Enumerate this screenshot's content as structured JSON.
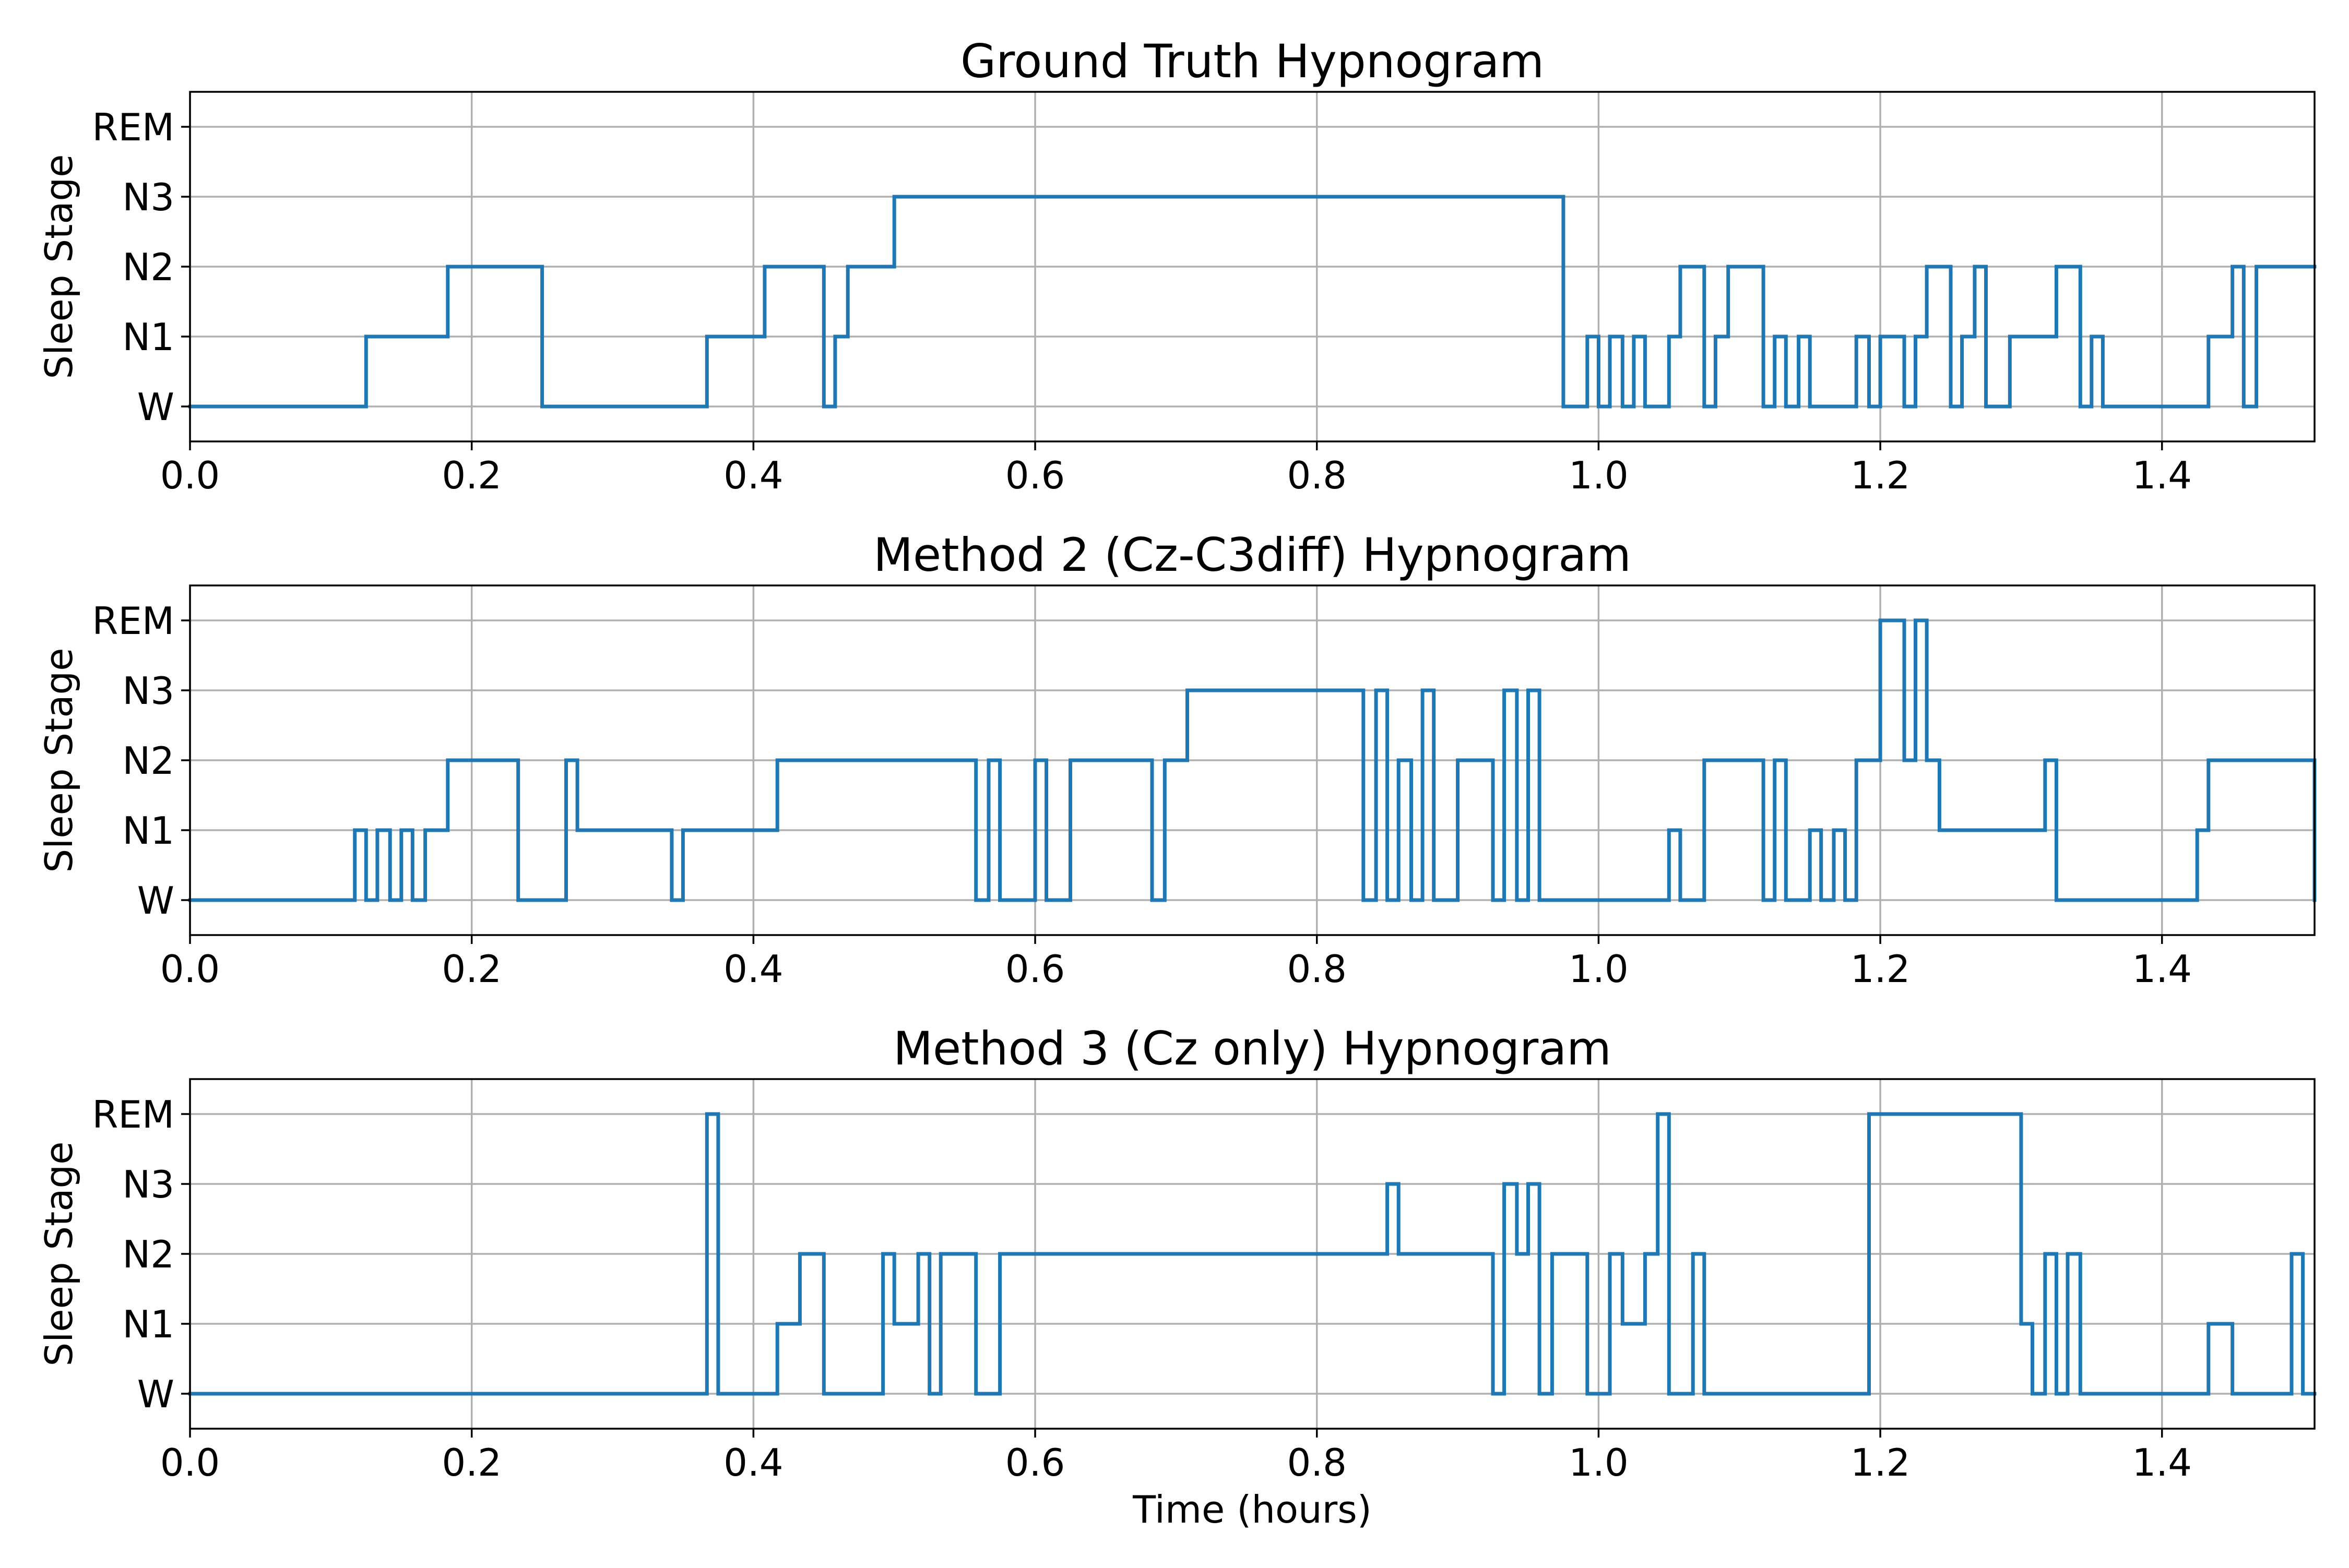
{
  "chart_data": [
    {
      "type": "line",
      "step": "post",
      "title": "Ground Truth Hypnogram",
      "ylabel": "Sleep Stage",
      "xlabel": "",
      "xlim": [
        0.0,
        1.5083
      ],
      "ylim": [
        -0.5,
        4.5
      ],
      "x_ticks": [
        "0.0",
        "0.2",
        "0.4",
        "0.6",
        "0.8",
        "1.0",
        "1.2",
        "1.4"
      ],
      "y_ticks": [
        "W",
        "N1",
        "N2",
        "N3",
        "REM"
      ],
      "grid": true,
      "color": "#1f77b4",
      "series": [
        {
          "x": [
            0.0,
            0.125,
            0.183,
            0.25,
            0.367,
            0.408,
            0.45,
            0.458,
            0.467,
            0.5,
            0.975,
            0.992,
            1.0,
            1.008,
            1.017,
            1.025,
            1.033,
            1.05,
            1.058,
            1.075,
            1.083,
            1.092,
            1.117,
            1.125,
            1.133,
            1.142,
            1.15,
            1.183,
            1.192,
            1.2,
            1.217,
            1.225,
            1.233,
            1.25,
            1.258,
            1.267,
            1.275,
            1.292,
            1.325,
            1.342,
            1.35,
            1.358,
            1.433,
            1.45,
            1.458,
            1.467,
            1.5083
          ],
          "y": [
            0,
            1,
            2,
            0,
            1,
            2,
            0,
            1,
            2,
            3,
            0,
            1,
            0,
            1,
            0,
            1,
            0,
            1,
            2,
            0,
            1,
            2,
            0,
            1,
            0,
            1,
            0,
            1,
            0,
            1,
            0,
            1,
            2,
            0,
            1,
            2,
            0,
            1,
            2,
            0,
            1,
            0,
            1,
            2,
            0,
            2,
            2
          ]
        }
      ]
    },
    {
      "type": "line",
      "step": "post",
      "title": "Method 2 (Cz-C3diff) Hypnogram",
      "ylabel": "Sleep Stage",
      "xlabel": "",
      "xlim": [
        0.0,
        1.5083
      ],
      "ylim": [
        -0.5,
        4.5
      ],
      "x_ticks": [
        "0.0",
        "0.2",
        "0.4",
        "0.6",
        "0.8",
        "1.0",
        "1.2",
        "1.4"
      ],
      "y_ticks": [
        "W",
        "N1",
        "N2",
        "N3",
        "REM"
      ],
      "grid": true,
      "color": "#1f77b4",
      "series": [
        {
          "x": [
            0.0,
            0.117,
            0.125,
            0.133,
            0.142,
            0.15,
            0.158,
            0.167,
            0.183,
            0.233,
            0.267,
            0.275,
            0.342,
            0.35,
            0.417,
            0.558,
            0.567,
            0.575,
            0.6,
            0.608,
            0.625,
            0.683,
            0.692,
            0.708,
            0.833,
            0.842,
            0.85,
            0.858,
            0.867,
            0.875,
            0.883,
            0.9,
            0.925,
            0.933,
            0.942,
            0.95,
            0.958,
            1.05,
            1.058,
            1.075,
            1.117,
            1.125,
            1.133,
            1.15,
            1.158,
            1.167,
            1.175,
            1.183,
            1.2,
            1.217,
            1.225,
            1.233,
            1.242,
            1.317,
            1.325,
            1.358,
            1.425,
            1.433,
            1.5,
            1.5083
          ],
          "y": [
            0,
            1,
            0,
            1,
            0,
            1,
            0,
            1,
            2,
            0,
            2,
            1,
            0,
            1,
            2,
            0,
            2,
            0,
            2,
            0,
            2,
            0,
            2,
            3,
            0,
            3,
            0,
            2,
            0,
            3,
            0,
            2,
            0,
            3,
            0,
            3,
            0,
            1,
            0,
            2,
            0,
            2,
            0,
            1,
            0,
            1,
            0,
            2,
            4,
            2,
            4,
            2,
            1,
            2,
            0,
            0,
            1,
            2,
            2,
            0
          ]
        }
      ]
    },
    {
      "type": "line",
      "step": "post",
      "title": "Method 3 (Cz only) Hypnogram",
      "ylabel": "Sleep Stage",
      "xlabel": "Time (hours)",
      "xlim": [
        0.0,
        1.5083
      ],
      "ylim": [
        -0.5,
        4.5
      ],
      "x_ticks": [
        "0.0",
        "0.2",
        "0.4",
        "0.6",
        "0.8",
        "1.0",
        "1.2",
        "1.4"
      ],
      "y_ticks": [
        "W",
        "N1",
        "N2",
        "N3",
        "REM"
      ],
      "grid": true,
      "color": "#1f77b4",
      "series": [
        {
          "x": [
            0.0,
            0.367,
            0.375,
            0.417,
            0.433,
            0.45,
            0.492,
            0.5,
            0.517,
            0.525,
            0.533,
            0.558,
            0.575,
            0.85,
            0.858,
            0.925,
            0.933,
            0.942,
            0.95,
            0.958,
            0.967,
            0.992,
            1.008,
            1.017,
            1.033,
            1.042,
            1.05,
            1.067,
            1.075,
            1.192,
            1.3,
            1.308,
            1.317,
            1.325,
            1.333,
            1.342,
            1.35,
            1.433,
            1.45,
            1.492,
            1.5,
            1.5083
          ],
          "y": [
            0,
            4,
            0,
            1,
            2,
            0,
            2,
            1,
            2,
            0,
            2,
            0,
            2,
            3,
            2,
            0,
            3,
            2,
            3,
            0,
            2,
            0,
            2,
            1,
            2,
            4,
            0,
            2,
            0,
            4,
            1,
            0,
            2,
            0,
            2,
            0,
            0,
            1,
            0,
            2,
            0,
            0
          ]
        }
      ]
    }
  ]
}
